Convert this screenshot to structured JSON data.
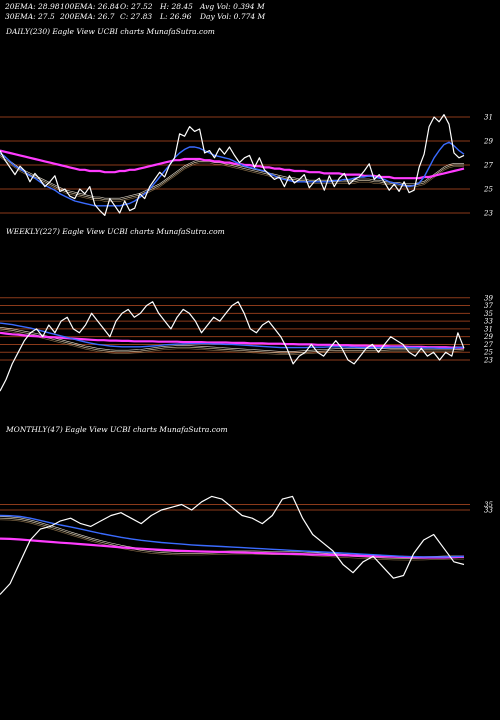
{
  "header": {
    "ema20": "20EMA: 28.98",
    "ema100": "100EMA: 26.84",
    "open": "O: 27.52",
    "high": "H: 28.45",
    "avg_vol": "Avg Vol: 0.394  M",
    "ema30": "30EMA: 27.5",
    "ema200": "200EMA: 26.7",
    "close": "C: 27.83",
    "low": "L: 26.96",
    "day_vol": "Day Vol: 0.774  M"
  },
  "colors": {
    "price": "#ffffff",
    "ema_short": "#3a6bff",
    "ema_long": "#ff3cff",
    "level": "#8b3a1a",
    "band": "#c8b89a"
  },
  "chart_data": [
    {
      "type": "line",
      "label": "DAILY(230) Eagle  View  UCBI charts MunafaSutra.com",
      "ylim": [
        22,
        32
      ],
      "y_ticks": [
        31,
        29,
        27,
        25,
        23
      ],
      "levels": [
        31,
        29,
        27,
        25,
        23
      ],
      "series": [
        {
          "role": "price",
          "values": [
            28.2,
            27.4,
            26.8,
            26.2,
            26.9,
            26.5,
            25.6,
            26.3,
            25.8,
            25.2,
            25.6,
            26.1,
            24.8,
            25.0,
            24.4,
            24.2,
            25.0,
            24.6,
            25.2,
            23.7,
            23.2,
            22.8,
            24.2,
            23.6,
            23.0,
            24.0,
            23.2,
            23.4,
            24.6,
            24.2,
            25.2,
            25.8,
            26.4,
            26.0,
            27.0,
            27.6,
            29.6,
            29.4,
            30.2,
            29.8,
            30.0,
            28.0,
            28.2,
            27.6,
            28.4,
            27.9,
            28.5,
            27.8,
            27.2,
            27.6,
            27.8,
            26.8,
            27.6,
            26.6,
            26.2,
            25.8,
            26.0,
            25.2,
            26.1,
            25.5,
            25.8,
            26.2,
            25.1,
            25.6,
            25.9,
            24.9,
            26.1,
            25.2,
            25.9,
            26.3,
            25.4,
            25.8,
            26.0,
            26.5,
            27.1,
            25.8,
            26.2,
            25.6,
            24.9,
            25.4,
            24.8,
            25.6,
            24.7,
            24.9,
            26.8,
            27.9,
            30.2,
            31.0,
            30.6,
            31.2,
            30.4,
            28.0,
            27.6,
            27.8
          ]
        },
        {
          "role": "ema-short",
          "values": [
            28.0,
            27.7,
            27.3,
            26.9,
            26.7,
            26.4,
            26.1,
            25.9,
            25.6,
            25.3,
            25.1,
            24.9,
            24.6,
            24.4,
            24.2,
            24.0,
            23.9,
            23.8,
            23.7,
            23.6,
            23.6,
            23.6,
            23.6,
            23.6,
            23.6,
            23.7,
            23.8,
            24.0,
            24.3,
            24.6,
            25.0,
            25.5,
            26.0,
            26.5,
            27.0,
            27.6,
            28.0,
            28.3,
            28.5,
            28.5,
            28.4,
            28.2,
            28.0,
            27.8,
            27.7,
            27.6,
            27.5,
            27.3,
            27.1,
            26.9,
            26.8,
            26.7,
            26.6,
            26.5,
            26.3,
            26.1,
            25.9,
            25.8,
            25.7,
            25.6,
            25.6,
            25.6,
            25.6,
            25.6,
            25.6,
            25.6,
            25.6,
            25.7,
            25.7,
            25.8,
            25.8,
            25.9,
            26.0,
            26.0,
            26.1,
            26.0,
            25.9,
            25.8,
            25.6,
            25.5,
            25.4,
            25.3,
            25.2,
            25.3,
            25.5,
            26.0,
            26.8,
            27.6,
            28.2,
            28.7,
            28.9,
            28.6,
            28.2,
            27.9
          ]
        },
        {
          "role": "ema-long",
          "values": [
            28.2,
            28.1,
            28.0,
            27.9,
            27.8,
            27.7,
            27.6,
            27.5,
            27.4,
            27.3,
            27.2,
            27.1,
            27.0,
            26.9,
            26.8,
            26.7,
            26.6,
            26.6,
            26.5,
            26.5,
            26.5,
            26.4,
            26.4,
            26.4,
            26.5,
            26.5,
            26.6,
            26.6,
            26.7,
            26.8,
            26.9,
            27.0,
            27.1,
            27.2,
            27.3,
            27.4,
            27.4,
            27.5,
            27.5,
            27.5,
            27.5,
            27.4,
            27.4,
            27.3,
            27.3,
            27.2,
            27.2,
            27.1,
            27.1,
            27.0,
            27.0,
            26.9,
            26.9,
            26.8,
            26.8,
            26.7,
            26.7,
            26.6,
            26.6,
            26.5,
            26.5,
            26.5,
            26.4,
            26.4,
            26.4,
            26.3,
            26.3,
            26.3,
            26.3,
            26.2,
            26.2,
            26.2,
            26.2,
            26.1,
            26.1,
            26.1,
            26.0,
            26.0,
            26.0,
            25.9,
            25.9,
            25.9,
            25.9,
            25.9,
            25.9,
            26.0,
            26.0,
            26.1,
            26.2,
            26.3,
            26.4,
            26.5,
            26.6,
            26.7
          ]
        },
        {
          "role": "band",
          "values": [
            27.8,
            27.5,
            27.2,
            26.9,
            26.6,
            26.4,
            26.2,
            26.0,
            25.8,
            25.6,
            25.4,
            25.2,
            25.0,
            24.8,
            24.7,
            24.6,
            24.5,
            24.4,
            24.3,
            24.2,
            24.2,
            24.1,
            24.1,
            24.1,
            24.1,
            24.2,
            24.3,
            24.4,
            24.5,
            24.7,
            24.9,
            25.1,
            25.3,
            25.6,
            25.9,
            26.2,
            26.5,
            26.8,
            27.0,
            27.2,
            27.3,
            27.3,
            27.3,
            27.2,
            27.2,
            27.1,
            27.0,
            26.9,
            26.8,
            26.7,
            26.6,
            26.5,
            26.4,
            26.3,
            26.2,
            26.1,
            26.0,
            25.9,
            25.8,
            25.8,
            25.7,
            25.7,
            25.6,
            25.6,
            25.6,
            25.6,
            25.6,
            25.6,
            25.6,
            25.6,
            25.6,
            25.6,
            25.7,
            25.7,
            25.7,
            25.6,
            25.6,
            25.5,
            25.5,
            25.4,
            25.4,
            25.3,
            25.3,
            25.3,
            25.4,
            25.5,
            25.8,
            26.1,
            26.4,
            26.7,
            26.9,
            27.0,
            27.0,
            27.0
          ]
        }
      ]
    },
    {
      "type": "line",
      "label": "WEEKLY(227) Eagle  View  UCBI charts MunafaSutra.com",
      "ylim": [
        14,
        41
      ],
      "y_ticks": [
        39,
        37,
        35,
        33,
        31,
        29,
        27,
        25,
        23
      ],
      "levels": [
        39,
        37,
        35,
        33,
        31,
        29,
        27,
        25,
        23
      ],
      "series": [
        {
          "role": "price",
          "values": [
            15.0,
            18.0,
            22.0,
            25.0,
            28.0,
            30.0,
            31.0,
            29.0,
            32.0,
            30.0,
            33.0,
            34.0,
            31.0,
            30.0,
            32.0,
            35.0,
            33.0,
            31.0,
            29.0,
            33.0,
            35.0,
            36.0,
            34.0,
            35.0,
            37.0,
            38.0,
            35.0,
            33.0,
            31.0,
            34.0,
            36.0,
            35.0,
            33.0,
            30.0,
            32.0,
            34.0,
            33.0,
            35.0,
            37.0,
            38.0,
            35.0,
            31.0,
            30.0,
            32.0,
            33.0,
            31.0,
            29.0,
            26.0,
            22.0,
            24.0,
            25.0,
            27.0,
            25.0,
            24.0,
            26.0,
            28.0,
            26.0,
            23.0,
            22.0,
            24.0,
            26.0,
            27.0,
            25.0,
            27.0,
            29.0,
            28.0,
            27.0,
            25.0,
            24.0,
            26.0,
            24.0,
            25.0,
            23.0,
            25.0,
            24.0,
            30.0,
            26.0
          ]
        },
        {
          "role": "ema-short",
          "values": [
            32.5,
            32.3,
            32.1,
            31.8,
            31.5,
            31.2,
            30.8,
            30.4,
            30.0,
            29.6,
            29.2,
            28.8,
            28.4,
            28.0,
            27.6,
            27.3,
            27.0,
            26.8,
            26.6,
            26.5,
            26.4,
            26.4,
            26.4,
            26.4,
            26.5,
            26.6,
            26.7,
            26.9,
            27.0,
            27.1,
            27.1,
            27.2,
            27.2,
            27.2,
            27.2,
            27.1,
            27.1,
            27.0,
            27.0,
            26.9,
            26.8,
            26.7,
            26.6,
            26.5,
            26.4,
            26.3,
            26.2,
            26.2,
            26.2,
            26.2,
            26.2,
            26.3,
            26.3,
            26.3,
            26.4,
            26.4,
            26.4,
            26.3,
            26.3,
            26.2,
            26.2,
            26.2,
            26.2,
            26.2,
            26.3,
            26.3,
            26.3,
            26.2,
            26.2,
            26.1,
            26.1,
            26.1,
            26.0,
            26.0,
            26.0,
            26.2,
            26.3
          ]
        },
        {
          "role": "ema-long",
          "values": [
            30.0,
            29.8,
            29.6,
            29.5,
            29.3,
            29.2,
            29.1,
            29.0,
            28.9,
            28.8,
            28.7,
            28.6,
            28.5,
            28.4,
            28.3,
            28.2,
            28.1,
            28.1,
            28.0,
            28.0,
            27.9,
            27.9,
            27.8,
            27.8,
            27.8,
            27.8,
            27.7,
            27.7,
            27.7,
            27.7,
            27.6,
            27.6,
            27.6,
            27.6,
            27.5,
            27.5,
            27.5,
            27.5,
            27.4,
            27.4,
            27.4,
            27.3,
            27.3,
            27.3,
            27.2,
            27.2,
            27.2,
            27.1,
            27.1,
            27.0,
            27.0,
            27.0,
            26.9,
            26.9,
            26.9,
            26.8,
            26.8,
            26.8,
            26.7,
            26.7,
            26.7,
            26.6,
            26.6,
            26.6,
            26.5,
            26.5,
            26.5,
            26.4,
            26.4,
            26.4,
            26.3,
            26.3,
            26.3,
            26.3,
            26.2,
            26.2,
            26.2
          ]
        },
        {
          "role": "band",
          "values": [
            31.0,
            30.8,
            30.6,
            30.3,
            30.0,
            29.7,
            29.4,
            29.0,
            28.6,
            28.2,
            27.8,
            27.4,
            27.0,
            26.6,
            26.2,
            25.9,
            25.6,
            25.4,
            25.2,
            25.1,
            25.1,
            25.1,
            25.2,
            25.3,
            25.5,
            25.7,
            25.9,
            26.1,
            26.2,
            26.3,
            26.3,
            26.3,
            26.2,
            26.1,
            26.0,
            25.9,
            25.8,
            25.7,
            25.6,
            25.5,
            25.4,
            25.3,
            25.2,
            25.1,
            25.0,
            24.9,
            24.8,
            24.8,
            24.8,
            24.9,
            25.0,
            25.1,
            25.2,
            25.3,
            25.4,
            25.5,
            25.5,
            25.5,
            25.5,
            25.5,
            25.5,
            25.5,
            25.5,
            25.5,
            25.6,
            25.6,
            25.6,
            25.6,
            25.6,
            25.6,
            25.6,
            25.6,
            25.6,
            25.6,
            25.6,
            25.7,
            25.8
          ]
        }
      ]
    },
    {
      "type": "line",
      "label": "MONTHLY(47) Eagle  View  UCBI charts MunafaSutra.com",
      "ylim": [
        0,
        44
      ],
      "y_ticks": [
        35,
        33
      ],
      "levels": [
        35,
        33
      ],
      "series": [
        {
          "role": "price",
          "values": [
            2.0,
            6.0,
            14.0,
            22.0,
            26.0,
            27.0,
            29.0,
            30.0,
            28.0,
            27.0,
            29.0,
            31.0,
            32.0,
            30.0,
            28.0,
            31.0,
            33.0,
            34.0,
            35.0,
            33.0,
            36.0,
            38.0,
            37.0,
            34.0,
            31.0,
            30.0,
            28.0,
            31.0,
            37.0,
            38.0,
            30.0,
            24.0,
            21.0,
            18.0,
            13.0,
            10.0,
            14.0,
            16.0,
            12.0,
            8.0,
            9.0,
            17.0,
            22.0,
            24.0,
            19.0,
            14.0,
            13.0
          ]
        },
        {
          "role": "ema-short",
          "values": [
            31.0,
            30.9,
            30.6,
            30.0,
            29.2,
            28.3,
            27.5,
            26.8,
            26.0,
            25.2,
            24.4,
            23.7,
            23.0,
            22.4,
            21.9,
            21.5,
            21.1,
            20.8,
            20.5,
            20.2,
            20.0,
            19.8,
            19.6,
            19.4,
            19.2,
            19.0,
            18.8,
            18.6,
            18.4,
            18.2,
            18.0,
            17.8,
            17.6,
            17.4,
            17.2,
            17.0,
            16.8,
            16.6,
            16.4,
            16.2,
            16.0,
            15.9,
            15.8,
            15.8,
            15.8,
            15.9,
            16.0
          ]
        },
        {
          "role": "ema-long",
          "values": [
            22.5,
            22.4,
            22.2,
            21.9,
            21.6,
            21.3,
            21.0,
            20.8,
            20.5,
            20.2,
            19.9,
            19.6,
            19.3,
            19.0,
            18.8,
            18.6,
            18.4,
            18.2,
            18.0,
            17.9,
            17.8,
            17.7,
            17.6,
            17.5,
            17.4,
            17.3,
            17.2,
            17.1,
            17.0,
            16.9,
            16.8,
            16.7,
            16.6,
            16.5,
            16.4,
            16.3,
            16.2,
            16.1,
            16.0,
            15.9,
            15.8,
            15.7,
            15.6,
            15.6,
            15.6,
            15.7,
            15.9
          ]
        },
        {
          "role": "band",
          "values": [
            30.0,
            29.9,
            29.5,
            28.8,
            27.8,
            26.7,
            25.6,
            24.4,
            23.3,
            22.2,
            21.2,
            20.3,
            19.5,
            18.8,
            18.2,
            17.7,
            17.4,
            17.2,
            17.1,
            17.1,
            17.1,
            17.2,
            17.3,
            17.4,
            17.4,
            17.4,
            17.3,
            17.2,
            17.2,
            17.1,
            17.0,
            16.8,
            16.6,
            16.4,
            16.2,
            16.0,
            15.8,
            15.6,
            15.4,
            15.3,
            15.2,
            15.2,
            15.3,
            15.4,
            15.5,
            15.6,
            15.6
          ]
        }
      ]
    }
  ]
}
